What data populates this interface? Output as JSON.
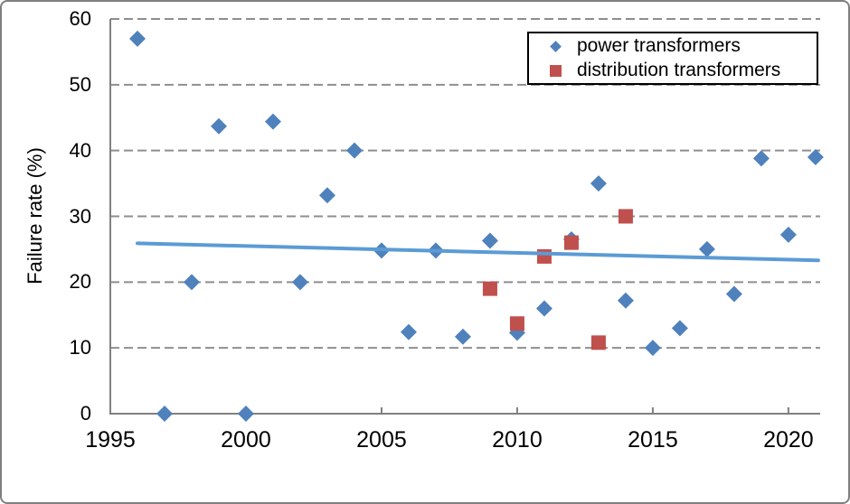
{
  "chart_data": {
    "type": "scatter",
    "title": "",
    "xlabel": "",
    "ylabel": "Failure rate (%)",
    "xlim": [
      1995,
      2021.17
    ],
    "ylim": [
      0,
      60
    ],
    "xticks": [
      1995,
      2000,
      2005,
      2010,
      2015,
      2020
    ],
    "yticks": [
      0,
      10,
      20,
      30,
      40,
      50,
      60
    ],
    "grid": "horizontal dashed gridlines",
    "legend_position": "top-right inside plot",
    "series": [
      {
        "name": "power transformers",
        "marker": "diamond",
        "color": "#4F81BD",
        "points": [
          [
            1996,
            57
          ],
          [
            1997,
            0
          ],
          [
            1998,
            20
          ],
          [
            1999,
            43.7
          ],
          [
            2000,
            0
          ],
          [
            2001,
            44.4
          ],
          [
            2002,
            20
          ],
          [
            2003,
            33.2
          ],
          [
            2004,
            40
          ],
          [
            2005,
            24.8
          ],
          [
            2006,
            12.4
          ],
          [
            2007,
            24.8
          ],
          [
            2008,
            11.7
          ],
          [
            2009,
            26.3
          ],
          [
            2010,
            12.3
          ],
          [
            2011,
            16
          ],
          [
            2012,
            26.5
          ],
          [
            2013,
            35
          ],
          [
            2014,
            17.2
          ],
          [
            2015,
            10
          ],
          [
            2016,
            13
          ],
          [
            2017,
            25
          ],
          [
            2018,
            18.2
          ],
          [
            2019,
            38.8
          ],
          [
            2020,
            27.2
          ],
          [
            2021,
            39
          ]
        ]
      },
      {
        "name": "distribution transformers",
        "marker": "square",
        "color": "#C0504D",
        "points": [
          [
            2009,
            19
          ],
          [
            2010,
            13.7
          ],
          [
            2011,
            23.9
          ],
          [
            2012,
            26
          ],
          [
            2013,
            10.8
          ],
          [
            2014,
            30
          ]
        ]
      }
    ],
    "trendline": {
      "applies_to": "power transformers",
      "color": "#5B9BD5",
      "x1": 1996,
      "y1": 25.9,
      "x2": 2021.1,
      "y2": 23.3
    }
  },
  "colors": {
    "outer_border": "#7f7f7f",
    "gridline": "#8e8e8e",
    "axis_line": "#808080",
    "legend_border": "#000000",
    "text": "#000000"
  }
}
